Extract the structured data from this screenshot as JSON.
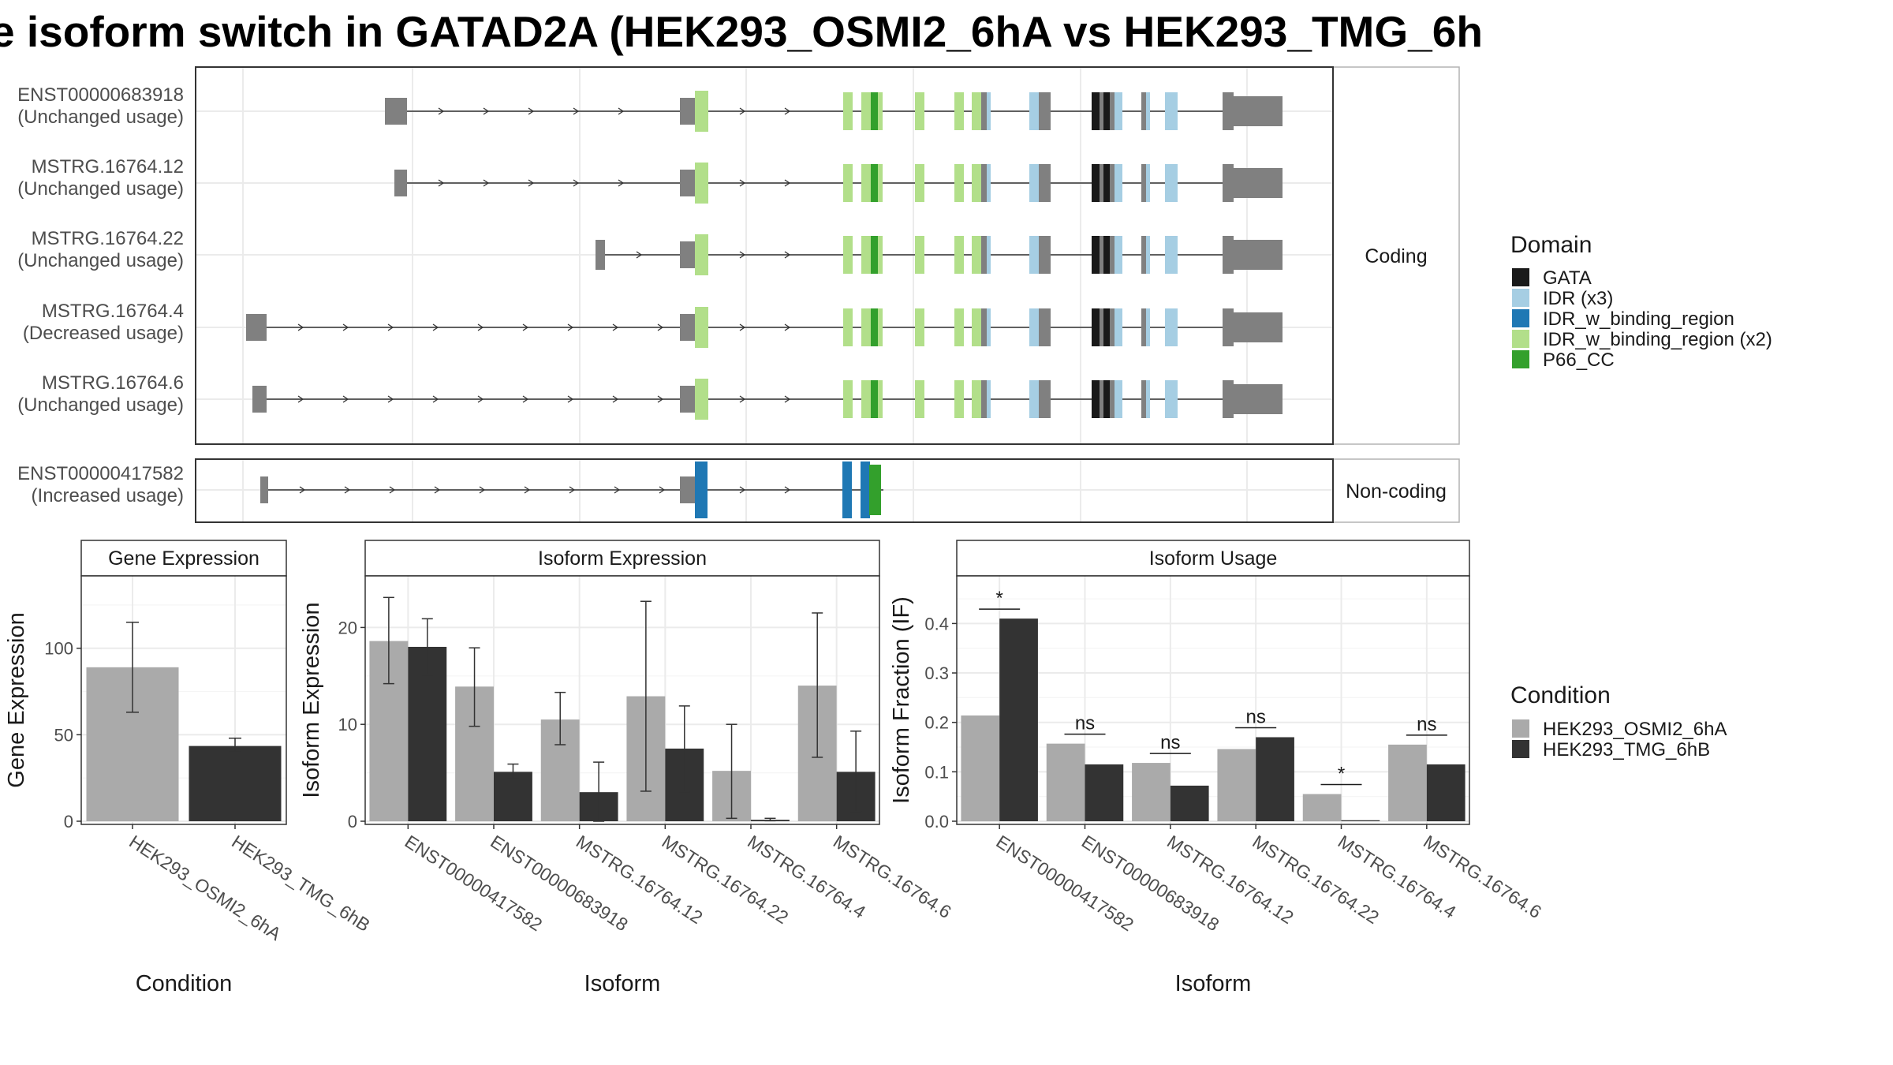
{
  "title": "e isoform switch in GATAD2A (HEK293_OSMI2_6hA vs HEK293_TMG_6h",
  "transcript_panel": {
    "facets": [
      "Coding",
      "Non-coding"
    ],
    "transcripts": [
      {
        "name": "ENST00000683918",
        "usage": "(Unchanged usage)",
        "group": "coding"
      },
      {
        "name": "MSTRG.16764.12",
        "usage": "(Unchanged usage)",
        "group": "coding"
      },
      {
        "name": "MSTRG.16764.22",
        "usage": "(Unchanged usage)",
        "group": "coding"
      },
      {
        "name": "MSTRG.16764.4",
        "usage": "(Decreased usage)",
        "group": "coding"
      },
      {
        "name": "MSTRG.16764.6",
        "usage": "(Unchanged usage)",
        "group": "coding"
      },
      {
        "name": "ENST00000417582",
        "usage": "(Increased usage)",
        "group": "noncoding"
      }
    ]
  },
  "domain_legend": {
    "title": "Domain",
    "items": [
      {
        "label": "GATA",
        "color": "#1a1a1a"
      },
      {
        "label": "IDR (x3)",
        "color": "#a6cee3"
      },
      {
        "label": "IDR_w_binding_region",
        "color": "#1f78b4"
      },
      {
        "label": "IDR_w_binding_region (x2)",
        "color": "#b2df8a"
      },
      {
        "label": "P66_CC",
        "color": "#33a02c"
      }
    ]
  },
  "condition_legend": {
    "title": "Condition",
    "items": [
      {
        "label": "HEK293_OSMI2_6hA",
        "color": "#aaaaaa"
      },
      {
        "label": "HEK293_TMG_6hB",
        "color": "#333333"
      }
    ]
  },
  "chart_data": [
    {
      "type": "bar",
      "title": "Gene Expression",
      "xlabel": "Condition",
      "ylabel": "Gene Expression",
      "ylim": [
        0,
        140
      ],
      "yticks": [
        0,
        50,
        100
      ],
      "categories": [
        "HEK293_OSMI2_6hA",
        "HEK293_TMG_6hB"
      ],
      "values": [
        89,
        43.5
      ],
      "error_low": [
        63,
        40
      ],
      "error_high": [
        115,
        48
      ],
      "colors": [
        "#aaaaaa",
        "#333333"
      ]
    },
    {
      "type": "bar",
      "title": "Isoform Expression",
      "xlabel": "Isoform",
      "ylabel": "Isoform Expression",
      "ylim": [
        0,
        25
      ],
      "yticks": [
        0,
        10,
        20
      ],
      "categories": [
        "ENST00000417582",
        "ENST00000683918",
        "MSTRG.16764.12",
        "MSTRG.16764.22",
        "MSTRG.16764.4",
        "MSTRG.16764.6"
      ],
      "series": [
        {
          "name": "HEK293_OSMI2_6hA",
          "color": "#aaaaaa",
          "values": [
            18.6,
            13.9,
            10.5,
            12.9,
            5.2,
            14
          ],
          "error_low": [
            14.2,
            9.8,
            7.9,
            3.1,
            0.3,
            6.6
          ],
          "error_high": [
            23.1,
            17.9,
            13.3,
            22.7,
            10,
            21.5
          ]
        },
        {
          "name": "HEK293_TMG_6hB",
          "color": "#333333",
          "values": [
            18,
            5.1,
            3,
            7.5,
            0.15,
            5.1
          ],
          "error_low": [
            15.1,
            4.4,
            0,
            3,
            0.05,
            1
          ],
          "error_high": [
            20.9,
            5.9,
            6.1,
            11.9,
            0.3,
            9.3
          ]
        }
      ]
    },
    {
      "type": "bar",
      "title": "Isoform Usage",
      "xlabel": "Isoform",
      "ylabel": "Isoform Fraction (IF)",
      "ylim": [
        0,
        0.49
      ],
      "yticks": [
        0.0,
        0.1,
        0.2,
        0.3,
        0.4
      ],
      "ytick_labels": [
        "0.0",
        "0.1",
        "0.2",
        "0.3",
        "0.4"
      ],
      "categories": [
        "ENST00000417582",
        "ENST00000683918",
        "MSTRG.16764.12",
        "MSTRG.16764.22",
        "MSTRG.16764.4",
        "MSTRG.16764.6"
      ],
      "series": [
        {
          "name": "HEK293_OSMI2_6hA",
          "color": "#aaaaaa",
          "values": [
            0.214,
            0.157,
            0.118,
            0.146,
            0.055,
            0.155
          ]
        },
        {
          "name": "HEK293_TMG_6hB",
          "color": "#333333",
          "values": [
            0.41,
            0.115,
            0.072,
            0.17,
            0.002,
            0.115
          ]
        }
      ],
      "significance": [
        "*",
        "ns",
        "ns",
        "ns",
        "*",
        "ns"
      ]
    }
  ]
}
